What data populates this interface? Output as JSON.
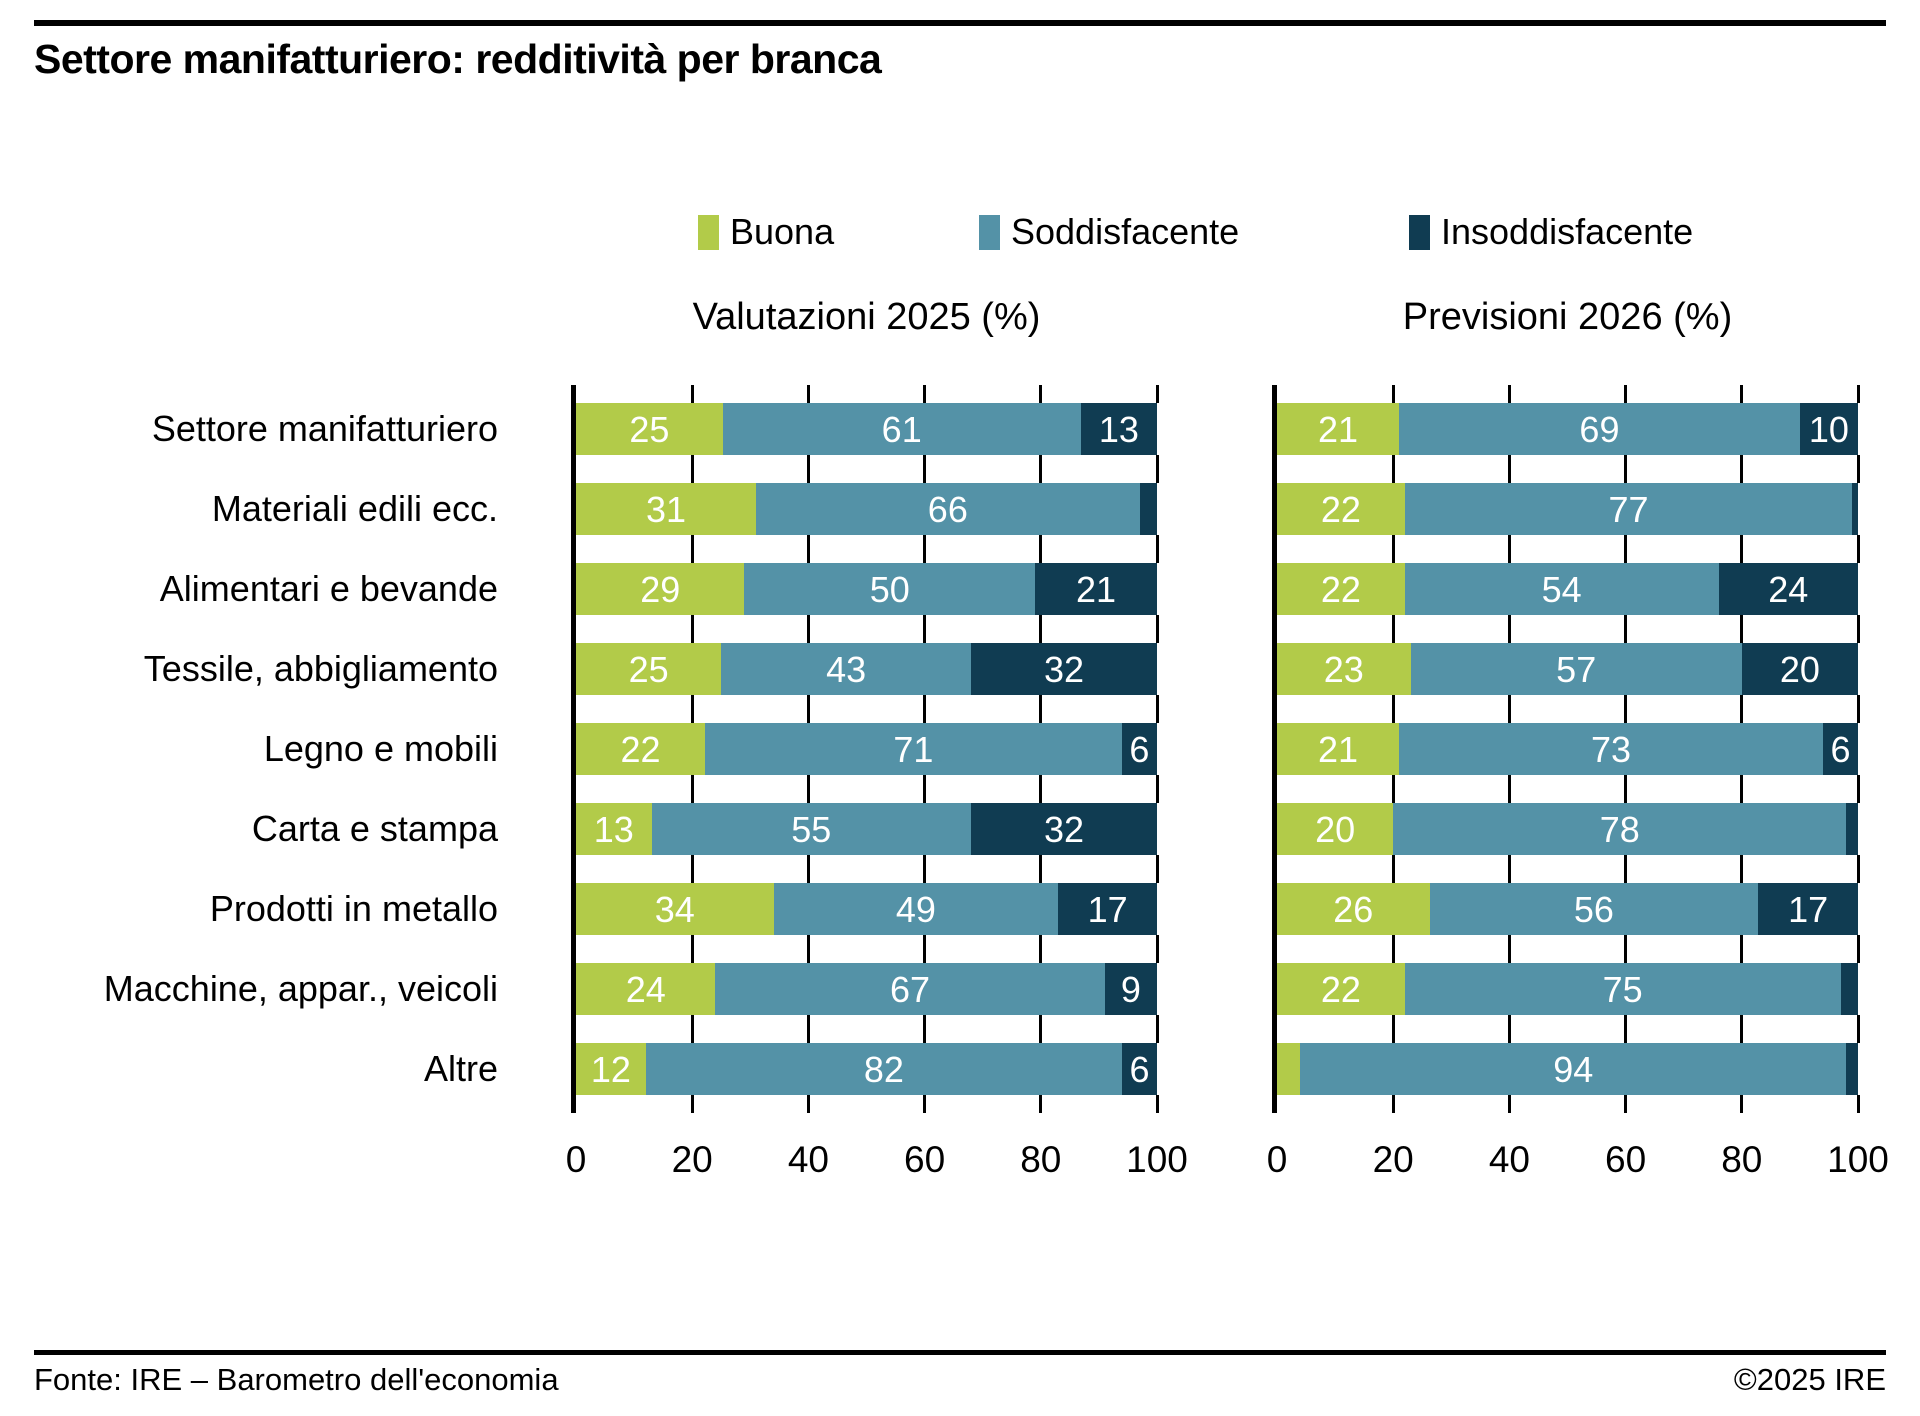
{
  "title": "Settore manifatturiero: redditività per branca",
  "legend": [
    {
      "label": "Buona",
      "color": "#b2cb49"
    },
    {
      "label": "Soddisfacente",
      "color": "#5492a7"
    },
    {
      "label": "Insoddisfacente",
      "color": "#103c52"
    }
  ],
  "footer": {
    "source": "Fonte: IRE – Barometro dell'economia",
    "copyright": "©2025 IRE"
  },
  "chart_data": {
    "type": "bar",
    "orientation": "horizontal",
    "stacked": true,
    "unit": "%",
    "title": "Settore manifatturiero: redditività per branca",
    "categories": [
      "Settore manifatturiero",
      "Materiali edili ecc.",
      "Alimentari e bevande",
      "Tessile, abbigliamento",
      "Legno e mobili",
      "Carta e stampa",
      "Prodotti in metallo",
      "Macchine, appar., veicoli",
      "Altre"
    ],
    "panels": [
      {
        "title": "Valutazioni 2025 (%)",
        "series": [
          {
            "name": "Buona",
            "values": [
              25,
              31,
              29,
              25,
              22,
              13,
              34,
              24,
              12
            ]
          },
          {
            "name": "Soddisfacente",
            "values": [
              61,
              66,
              50,
              43,
              71,
              55,
              49,
              67,
              82
            ]
          },
          {
            "name": "Insoddisfacente",
            "values": [
              13,
              3,
              21,
              32,
              6,
              32,
              17,
              9,
              6
            ]
          }
        ]
      },
      {
        "title": "Previsioni 2026 (%)",
        "series": [
          {
            "name": "Buona",
            "values": [
              21,
              22,
              22,
              23,
              21,
              20,
              26,
              22,
              4
            ]
          },
          {
            "name": "Soddisfacente",
            "values": [
              69,
              77,
              54,
              57,
              73,
              78,
              56,
              75,
              94
            ]
          },
          {
            "name": "Insoddisfacente",
            "values": [
              10,
              1,
              24,
              20,
              6,
              2,
              17,
              3,
              2
            ]
          }
        ]
      }
    ],
    "x_ticks": [
      0,
      20,
      40,
      60,
      80,
      100
    ],
    "xlim": [
      0,
      100
    ],
    "label_min_value": 6,
    "legend_position": "top",
    "grid": "vertical-ticks-between-bars"
  }
}
